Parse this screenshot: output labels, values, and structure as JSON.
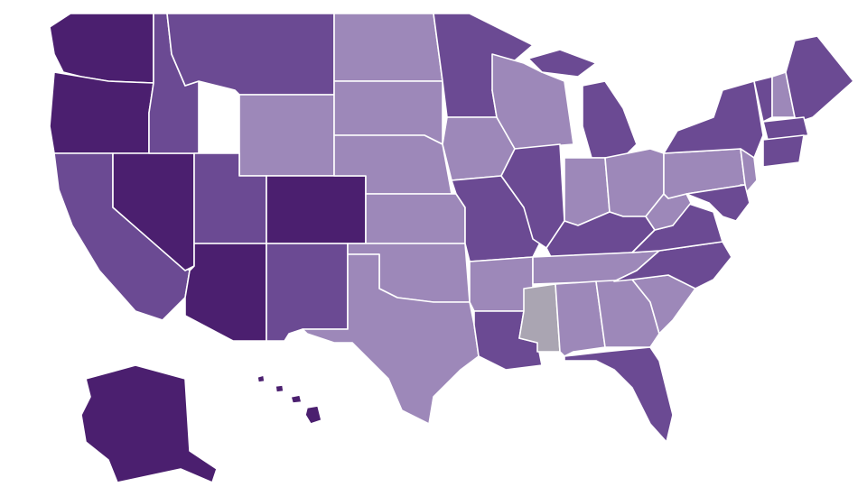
{
  "map": {
    "type": "choropleth",
    "palette": {
      "1": "#4b1f6f",
      "2": "#6b4a93",
      "3": "#9d88b9",
      "0": "#aaa5b2"
    },
    "levels": {
      "WA": 1,
      "OR": 1,
      "CA": 2,
      "NV": 1,
      "ID": 2,
      "MT": 2,
      "WY": 3,
      "UT": 2,
      "AZ": 1,
      "CO": 1,
      "NM": 2,
      "ND": 3,
      "SD": 3,
      "NE": 3,
      "KS": 3,
      "OK": 3,
      "TX": 3,
      "MN": 2,
      "IA": 3,
      "MO": 2,
      "AR": 3,
      "LA": 2,
      "WI": 3,
      "IL": 2,
      "MI": 2,
      "IN": 3,
      "OH": 3,
      "KY": 2,
      "TN": 3,
      "MS": 0,
      "AL": 3,
      "GA": 3,
      "FL": 2,
      "SC": 3,
      "NC": 2,
      "VA": 2,
      "WV": 3,
      "PA": 3,
      "NY": 2,
      "NJ": 3,
      "MD": 2,
      "VT": 2,
      "NH": 3,
      "ME": 2,
      "MA": 2,
      "CT": 2,
      "AK": 1,
      "HI": 1
    }
  }
}
